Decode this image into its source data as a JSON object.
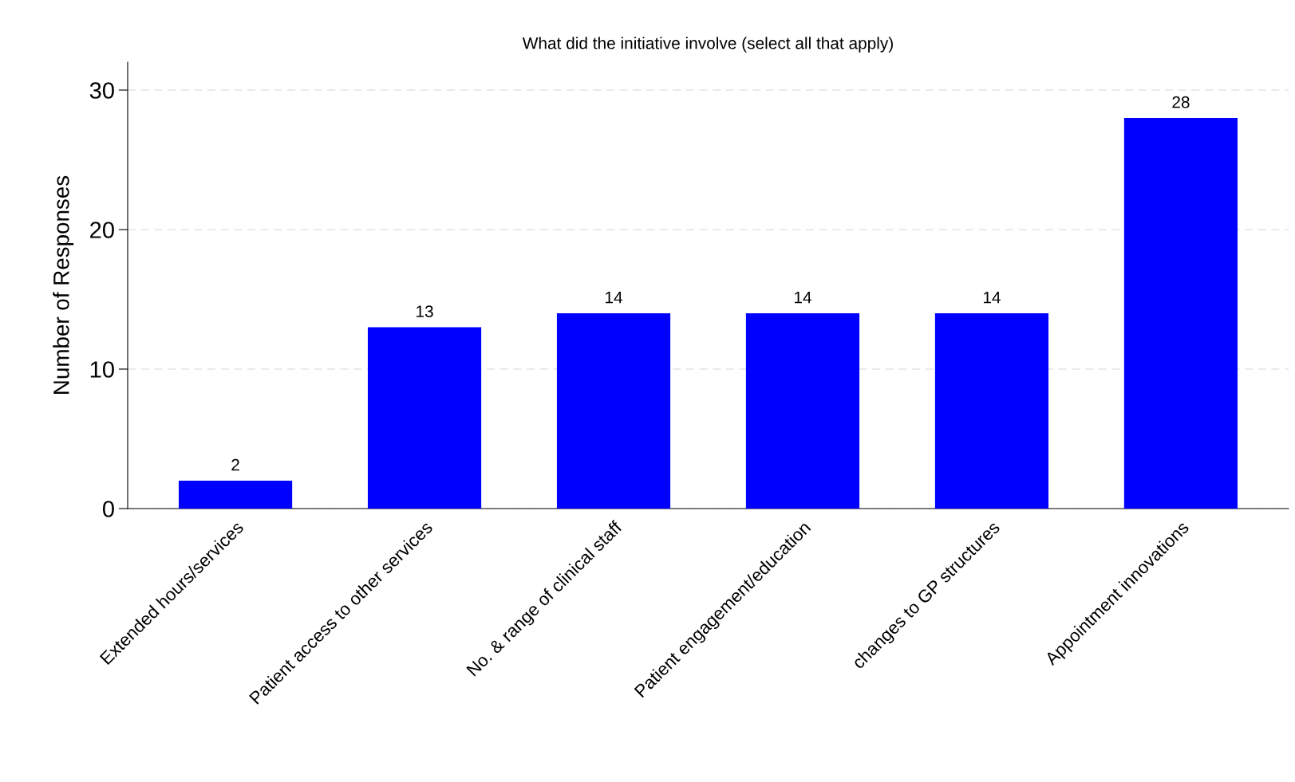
{
  "chart_data": {
    "type": "bar",
    "title": "What did the initiative involve (select all that apply)",
    "ylabel": "Number of Responses",
    "categories": [
      "Extended hours/services",
      "Patient access to other services",
      "No. & range of clinical staff",
      "Patient engagement/education",
      "changes to GP structures",
      "Appointment innovations"
    ],
    "values": [
      2,
      13,
      14,
      14,
      14,
      28
    ],
    "color": "#0000ff",
    "ylim": [
      0,
      32
    ],
    "yticks": [
      0,
      10,
      20,
      30
    ],
    "grid": "y",
    "data_labels": true
  }
}
